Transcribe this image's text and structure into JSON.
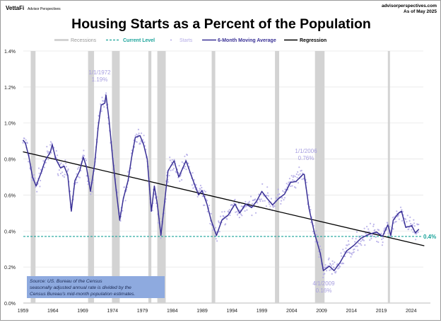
{
  "header": {
    "brand": "VettaFi",
    "brand_sub": "Advisor Perspectives",
    "site": "advisorperspectives.com",
    "as_of": "As of May 2025"
  },
  "colors": {
    "recession": "#d3d3d3",
    "current_level": "#1aa39a",
    "starts": "#b3aae6",
    "moving_average": "#3a3196",
    "regression": "#000000",
    "source_box": "#8eaadf"
  },
  "chart_data": {
    "type": "line",
    "title": "Housing Starts as a Percent of the Population",
    "xlabel": "",
    "ylabel": "",
    "xlim": [
      1959,
      2027.5
    ],
    "ylim": [
      0,
      1.4
    ],
    "x_ticks": [
      "1959",
      "1964",
      "1969",
      "1974",
      "1979",
      "1984",
      "1989",
      "1994",
      "1999",
      "2004",
      "2009",
      "2014",
      "2019",
      "2024"
    ],
    "y_ticks": [
      "0.0%",
      "0.2%",
      "0.4%",
      "0.6%",
      "0.8%",
      "1.0%",
      "1.2%",
      "1.4%"
    ],
    "grid": true,
    "legend": {
      "position": "top",
      "items": [
        "Recessions",
        "Current Level",
        "Starts",
        "6-Month Moving Average",
        "Regression"
      ]
    },
    "recessions": [
      [
        1960.3,
        1961.1
      ],
      [
        1969.9,
        1970.9
      ],
      [
        1973.9,
        1975.2
      ],
      [
        1980.0,
        1980.5
      ],
      [
        1981.5,
        1982.9
      ],
      [
        1990.6,
        1991.2
      ],
      [
        2001.2,
        2001.9
      ],
      [
        2007.9,
        2009.5
      ],
      [
        2020.1,
        2020.3
      ]
    ],
    "current_level": {
      "value": 0.37,
      "label": "0.4%"
    },
    "regression": {
      "x": [
        1959,
        2026.2
      ],
      "y": [
        0.84,
        0.318
      ]
    },
    "series": [
      {
        "name": "6-Month Moving Average",
        "x": [
          1959.0,
          1959.4,
          1960.0,
          1960.6,
          1961.2,
          1962.0,
          1962.7,
          1963.6,
          1963.9,
          1964.5,
          1965.3,
          1965.9,
          1966.5,
          1967.1,
          1967.7,
          1968.5,
          1969.1,
          1969.6,
          1970.3,
          1971.0,
          1971.6,
          1972.1,
          1972.7,
          1972.9,
          1973.4,
          1974.0,
          1974.6,
          1975.2,
          1975.8,
          1976.6,
          1977.2,
          1977.8,
          1978.6,
          1979.2,
          1979.8,
          1980.5,
          1981.0,
          1981.5,
          1982.1,
          1983.3,
          1984.3,
          1985.1,
          1986.3,
          1987.5,
          1988.4,
          1989.0,
          1989.8,
          1990.5,
          1991.4,
          1992.3,
          1993.4,
          1994.5,
          1995.3,
          1996.3,
          1997.3,
          1998.1,
          1999.0,
          1999.9,
          2000.8,
          2001.8,
          2002.8,
          2003.8,
          2004.7,
          2005.9,
          2006.1,
          2006.9,
          2007.8,
          2008.8,
          2009.3,
          2010.3,
          2011.1,
          2012.1,
          2013.2,
          2014.4,
          2015.6,
          2016.8,
          2018.2,
          2019.2,
          2020.1,
          2020.6,
          2021.0,
          2021.9,
          2022.4,
          2023.1,
          2024.1,
          2024.7,
          2025.3
        ],
        "y": [
          0.905,
          0.89,
          0.81,
          0.7,
          0.65,
          0.72,
          0.79,
          0.84,
          0.88,
          0.8,
          0.75,
          0.76,
          0.71,
          0.51,
          0.68,
          0.735,
          0.81,
          0.76,
          0.62,
          0.77,
          0.98,
          1.1,
          1.11,
          1.155,
          1.02,
          0.81,
          0.63,
          0.46,
          0.58,
          0.68,
          0.81,
          0.92,
          0.93,
          0.88,
          0.8,
          0.51,
          0.65,
          0.55,
          0.375,
          0.735,
          0.79,
          0.7,
          0.79,
          0.68,
          0.6,
          0.625,
          0.55,
          0.46,
          0.375,
          0.46,
          0.49,
          0.55,
          0.5,
          0.55,
          0.53,
          0.565,
          0.62,
          0.58,
          0.545,
          0.58,
          0.605,
          0.67,
          0.675,
          0.715,
          0.715,
          0.525,
          0.39,
          0.275,
          0.18,
          0.205,
          0.18,
          0.225,
          0.29,
          0.32,
          0.36,
          0.38,
          0.395,
          0.37,
          0.435,
          0.375,
          0.46,
          0.5,
          0.51,
          0.42,
          0.43,
          0.39,
          0.41
        ]
      },
      {
        "name": "Starts"
      }
    ],
    "annotations": [
      {
        "date": "1/1/1972",
        "value": "1.19%",
        "x": 1972.0
      },
      {
        "date": "1/1/2006",
        "value": "0.76%",
        "x": 2006.0
      },
      {
        "date": "4/1/2009",
        "value": "0.16%",
        "x": 2009.25
      }
    ],
    "source": [
      "Source: US. Bureau of the Census",
      "seasonally adjusted annual rate is divided by the",
      "Census Bureau's mid-month population estimates."
    ]
  }
}
